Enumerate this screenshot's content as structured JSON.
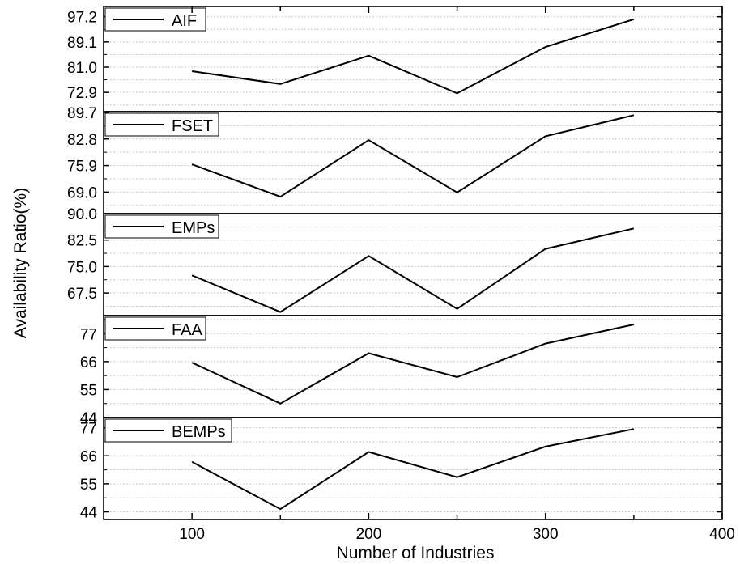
{
  "chart_data": {
    "type": "line",
    "layout": "stacked-panels",
    "xlabel": "Number of Industries",
    "ylabel": "Availability Ratio(%)",
    "xlim": [
      50,
      400
    ],
    "xticks": [
      100,
      200,
      300,
      400
    ],
    "x": [
      100,
      150,
      200,
      250,
      300,
      350
    ],
    "grid": "horizontal-dotted",
    "legend_placement": "top-left",
    "line_color": "#000000",
    "panels": [
      {
        "series": [
          {
            "name": "AIF",
            "values": [
              79.7,
              75.6,
              84.7,
              72.6,
              87.5,
              96.4
            ]
          }
        ],
        "ylim": [
          66.7,
          100.5
        ],
        "yticks": [
          72.9,
          81.0,
          89.1,
          97.2
        ],
        "ytick_labels": [
          "72.9",
          "81.0",
          "89.1",
          "97.2"
        ]
      },
      {
        "series": [
          {
            "name": "FSET",
            "values": [
              76.2,
              67.8,
              82.5,
              68.9,
              83.5,
              89.0
            ]
          }
        ],
        "ylim": [
          63.4,
          89.9
        ],
        "yticks": [
          69.0,
          75.9,
          82.8,
          89.7
        ],
        "ytick_labels": [
          "69.0",
          "75.9",
          "82.8",
          "89.7"
        ]
      },
      {
        "series": [
          {
            "name": "EMPs",
            "values": [
              72.5,
              62.1,
              78.0,
              63.0,
              80.0,
              85.8
            ]
          }
        ],
        "ylim": [
          61.1,
          90.0
        ],
        "yticks": [
          67.5,
          75.0,
          82.5,
          90.0
        ],
        "ytick_labels": [
          "67.5",
          "75.0",
          "82.5",
          "90.0"
        ]
      },
      {
        "series": [
          {
            "name": "FAA",
            "values": [
              65.6,
              49.5,
              69.3,
              59.9,
              73.1,
              80.6
            ]
          }
        ],
        "ylim": [
          44.0,
          84.1
        ],
        "yticks": [
          44,
          55,
          66,
          77
        ],
        "ytick_labels": [
          "44",
          "55",
          "66",
          "77"
        ]
      },
      {
        "series": [
          {
            "name": "BEMPs",
            "values": [
              63.6,
              45.1,
              67.5,
              57.6,
              69.6,
              76.5
            ]
          }
        ],
        "ylim": [
          41.0,
          81.0
        ],
        "yticks": [
          44,
          55,
          66,
          77
        ],
        "ytick_labels": [
          "44",
          "55",
          "66",
          "77"
        ]
      }
    ]
  }
}
